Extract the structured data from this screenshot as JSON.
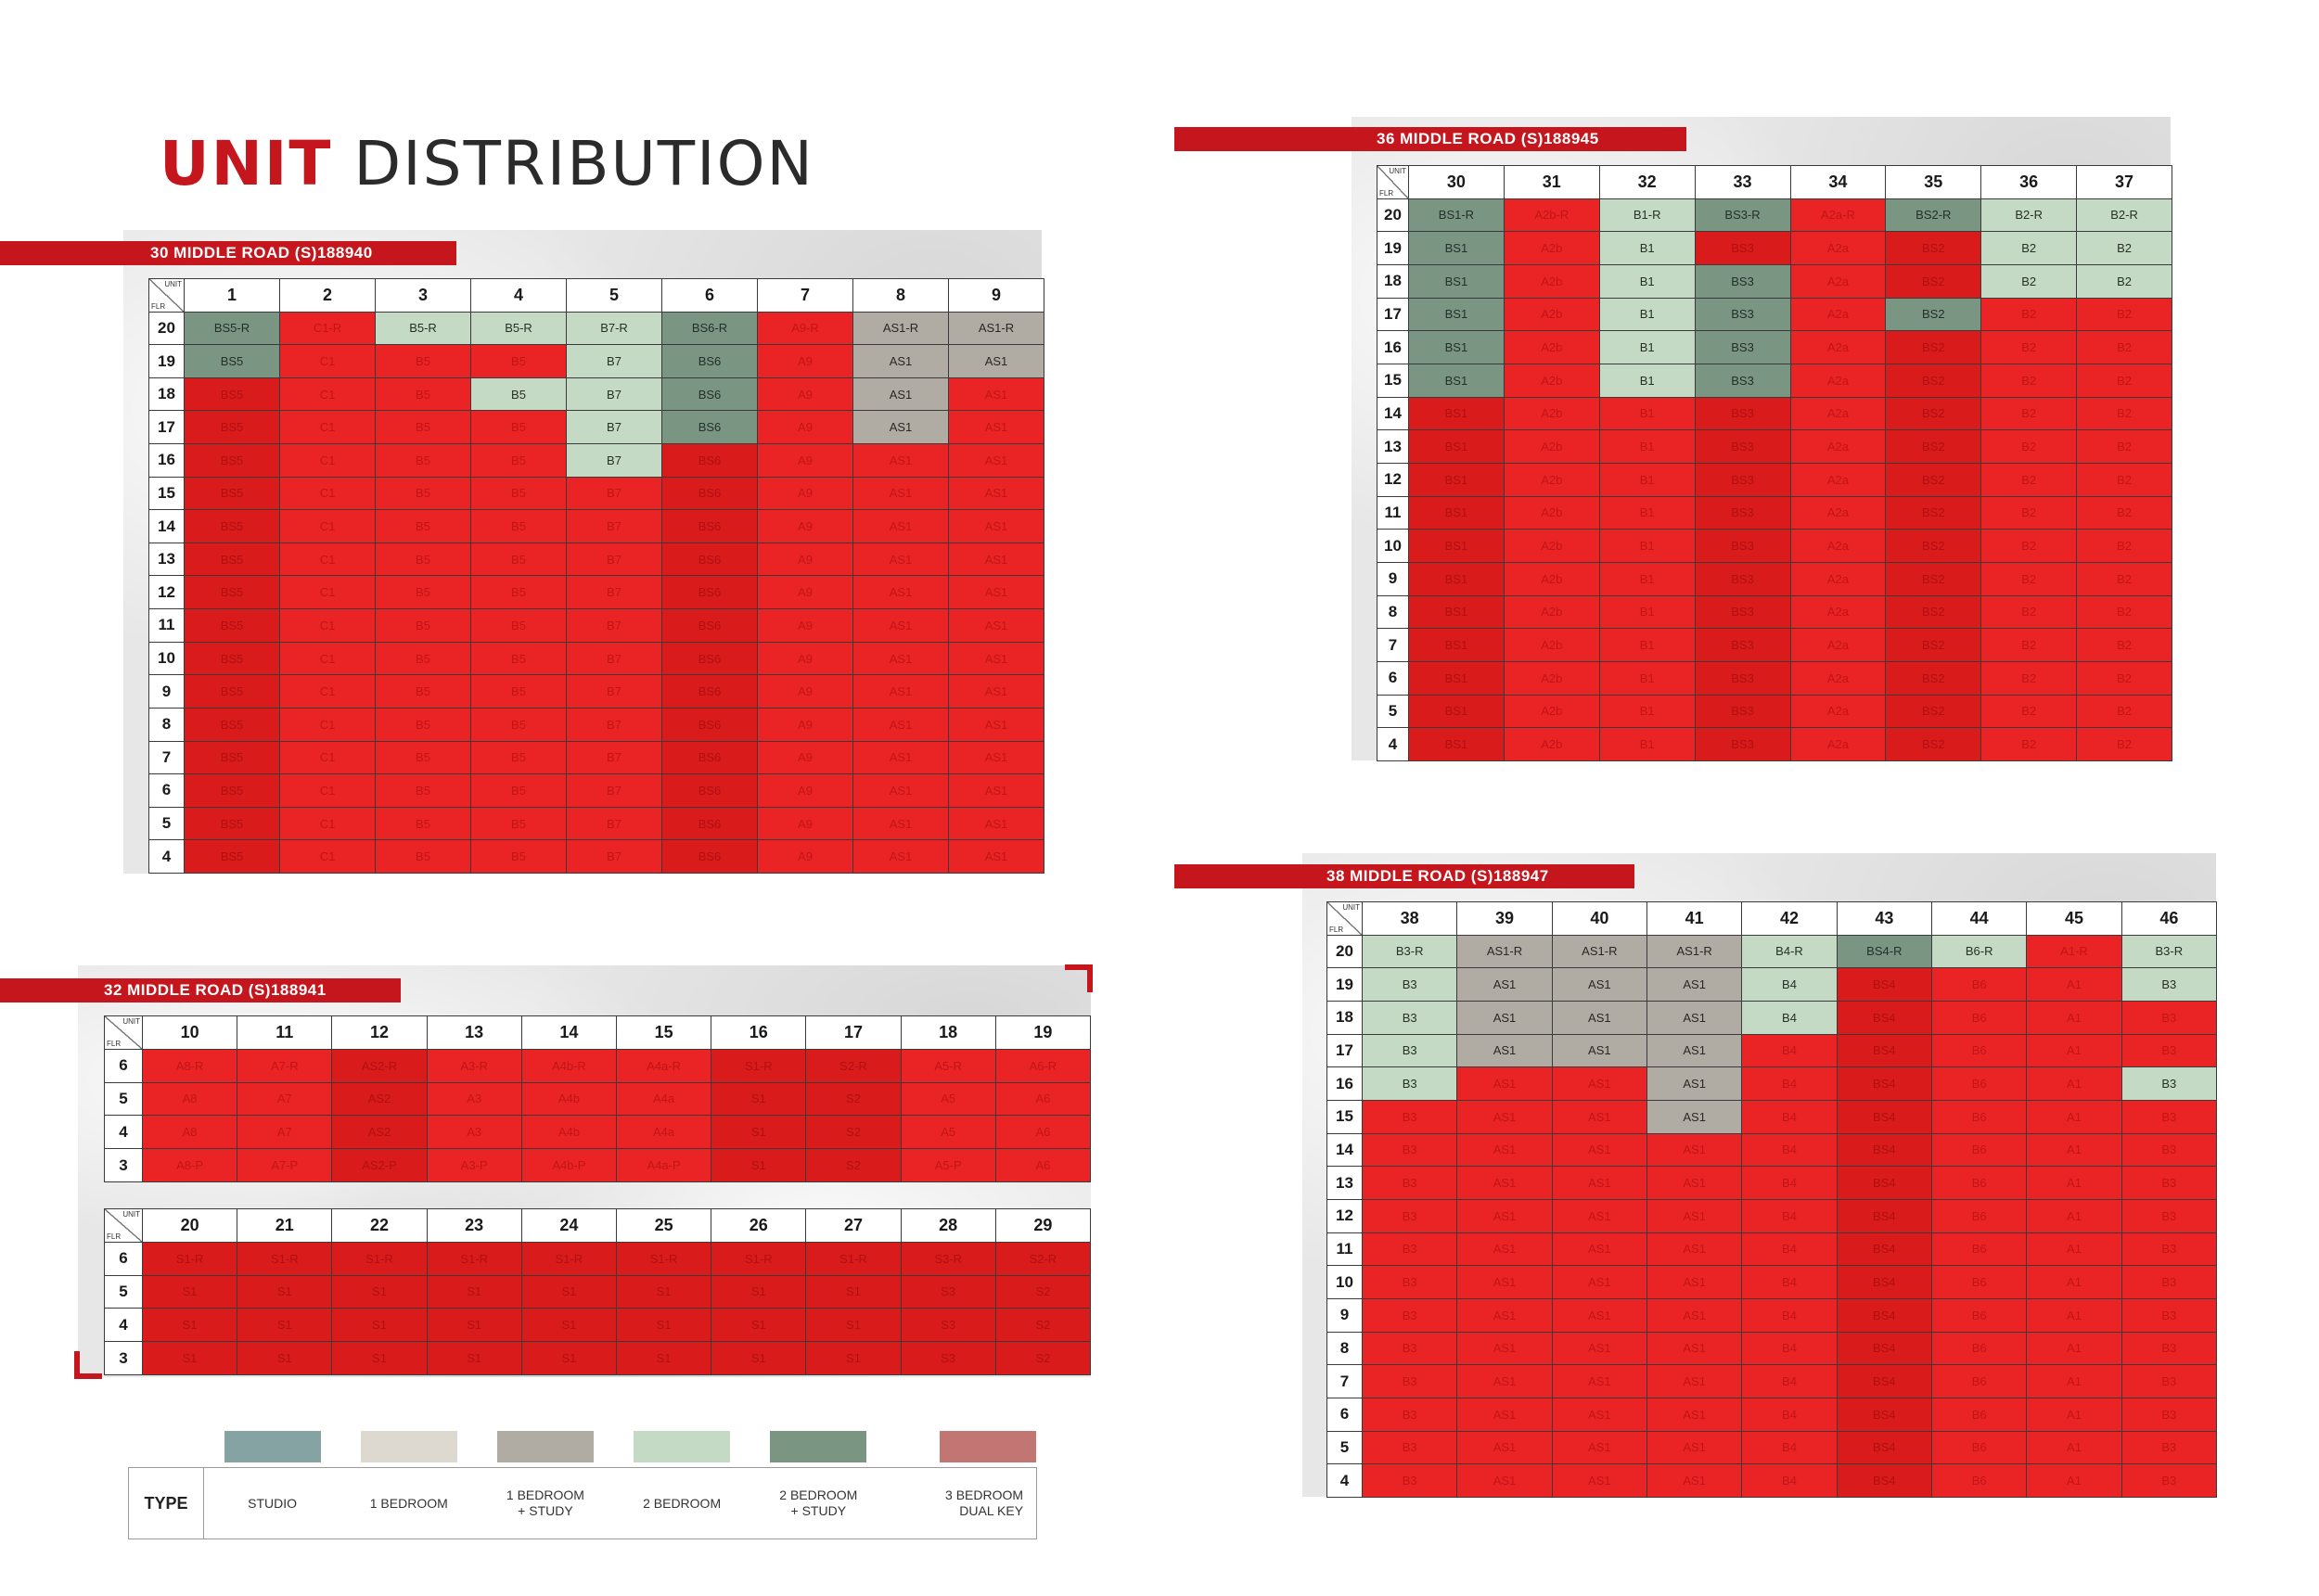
{
  "title": {
    "strong": "UNIT",
    "rest": " DISTRIBUTION"
  },
  "corner": {
    "unit": "UNIT",
    "floor": "FLR"
  },
  "colors": {
    "sold": "#ea2424",
    "studio": "#86a3a3",
    "one_bedroom": "#ddd8d0",
    "one_bedroom_study": "#b1aca3",
    "two_bedroom": "#c5dac5",
    "two_bedroom_study": "#7a9581",
    "three_bedroom_dual_key": "#c27674",
    "brand": "#c5161d"
  },
  "blocks": [
    {
      "id": "30",
      "name": "30 MIDDLE ROAD (S)188940",
      "units": [
        "1",
        "2",
        "3",
        "4",
        "5",
        "6",
        "7",
        "8",
        "9"
      ],
      "floors": [
        "20",
        "19",
        "18",
        "17",
        "16",
        "15",
        "14",
        "13",
        "12",
        "11",
        "10",
        "9",
        "8",
        "7",
        "6",
        "5",
        "4"
      ],
      "types": [
        "BS5",
        "C1",
        "B5",
        "B5",
        "B7",
        "BS6",
        "A9",
        "AS1",
        "AS1"
      ],
      "top_suffix": "-R",
      "available": {
        "1": [
          "20",
          "19"
        ],
        "3": [
          "20"
        ],
        "4": [
          "20",
          "18"
        ],
        "5": [
          "20",
          "19",
          "18",
          "17",
          "16"
        ],
        "6": [
          "20",
          "19",
          "18",
          "17"
        ],
        "8": [
          "20",
          "19",
          "18",
          "17"
        ],
        "9": [
          "20",
          "19"
        ]
      },
      "dark_cols": [
        "1",
        "6"
      ]
    },
    {
      "id": "36",
      "name": "36 MIDDLE ROAD (S)188945",
      "units": [
        "30",
        "31",
        "32",
        "33",
        "34",
        "35",
        "36",
        "37"
      ],
      "floors": [
        "20",
        "19",
        "18",
        "17",
        "16",
        "15",
        "14",
        "13",
        "12",
        "11",
        "10",
        "9",
        "8",
        "7",
        "6",
        "5",
        "4"
      ],
      "types": [
        "BS1",
        "A2b",
        "B1",
        "BS3",
        "A2a",
        "BS2",
        "B2",
        "B2"
      ],
      "top_suffix": "-R",
      "available": {
        "30": [
          "20",
          "19",
          "18",
          "17",
          "16",
          "15"
        ],
        "32": [
          "20",
          "19",
          "18",
          "17",
          "16",
          "15"
        ],
        "33": [
          "20",
          "18",
          "17",
          "16",
          "15"
        ],
        "35": [
          "20",
          "17"
        ],
        "36": [
          "20",
          "19",
          "18"
        ],
        "37": [
          "20",
          "19",
          "18"
        ]
      },
      "dark_cols": [
        "30",
        "33",
        "35"
      ]
    },
    {
      "id": "32a",
      "name": "32 MIDDLE ROAD (S)188941",
      "units": [
        "10",
        "11",
        "12",
        "13",
        "14",
        "15",
        "16",
        "17",
        "18",
        "19"
      ],
      "floors": [
        "6",
        "5",
        "4",
        "3"
      ],
      "labels": {
        "6": [
          "A8-R",
          "A7-R",
          "AS2-R",
          "A3-R",
          "A4b-R",
          "A4a-R",
          "S1-R",
          "S2-R",
          "A5-R",
          "A6-R"
        ],
        "5": [
          "A8",
          "A7",
          "AS2",
          "A3",
          "A4b",
          "A4a",
          "S1",
          "S2",
          "A5",
          "A6"
        ],
        "4": [
          "A8",
          "A7",
          "AS2",
          "A3",
          "A4b",
          "A4a",
          "S1",
          "S2",
          "A5",
          "A6"
        ],
        "3": [
          "A8-P",
          "A7-P",
          "AS2-P",
          "A3-P",
          "A4b-P",
          "A4a-P",
          "S1",
          "S2",
          "A5-P",
          "A6"
        ]
      },
      "available": {},
      "dark_cols": [
        "12",
        "16",
        "17"
      ]
    },
    {
      "id": "32b",
      "name": "",
      "units": [
        "20",
        "21",
        "22",
        "23",
        "24",
        "25",
        "26",
        "27",
        "28",
        "29"
      ],
      "floors": [
        "6",
        "5",
        "4",
        "3"
      ],
      "labels": {
        "6": [
          "S1-R",
          "S1-R",
          "S1-R",
          "S1-R",
          "S1-R",
          "S1-R",
          "S1-R",
          "S1-R",
          "S3-R",
          "S2-R"
        ],
        "5": [
          "S1",
          "S1",
          "S1",
          "S1",
          "S1",
          "S1",
          "S1",
          "S1",
          "S3",
          "S2"
        ],
        "4": [
          "S1",
          "S1",
          "S1",
          "S1",
          "S1",
          "S1",
          "S1",
          "S1",
          "S3",
          "S2"
        ],
        "3": [
          "S1",
          "S1",
          "S1",
          "S1",
          "S1",
          "S1",
          "S1",
          "S1",
          "S3",
          "S2"
        ]
      },
      "available": {},
      "dark_cols": [
        "20",
        "21",
        "22",
        "23",
        "24",
        "25",
        "26",
        "27",
        "28",
        "29"
      ]
    },
    {
      "id": "38",
      "name": "38 MIDDLE ROAD (S)188947",
      "units": [
        "38",
        "39",
        "40",
        "41",
        "42",
        "43",
        "44",
        "45",
        "46"
      ],
      "floors": [
        "20",
        "19",
        "18",
        "17",
        "16",
        "15",
        "14",
        "13",
        "12",
        "11",
        "10",
        "9",
        "8",
        "7",
        "6",
        "5",
        "4"
      ],
      "types": [
        "B3",
        "AS1",
        "AS1",
        "AS1",
        "B4",
        "BS4",
        "B6",
        "A1",
        "B3"
      ],
      "top_suffix": "-R",
      "available": {
        "38": [
          "20",
          "19",
          "18",
          "17",
          "16"
        ],
        "39": [
          "20",
          "19",
          "18",
          "17"
        ],
        "40": [
          "20",
          "19",
          "18",
          "17"
        ],
        "41": [
          "20",
          "19",
          "18",
          "17",
          "16",
          "15"
        ],
        "42": [
          "20",
          "19",
          "18"
        ],
        "43": [
          "20"
        ],
        "44": [
          "20"
        ],
        "46": [
          "20",
          "19",
          "16"
        ]
      },
      "dark_cols": [
        "43"
      ]
    }
  ],
  "legend": {
    "type_label": "TYPE",
    "items": [
      {
        "label1": "STUDIO",
        "label2": "",
        "color": "#86a3a3"
      },
      {
        "label1": "1 BEDROOM",
        "label2": "",
        "color": "#ddd8d0"
      },
      {
        "label1": "1 BEDROOM",
        "label2": "+ STUDY",
        "color": "#b1aca3"
      },
      {
        "label1": "2 BEDROOM",
        "label2": "",
        "color": "#c5dac5"
      },
      {
        "label1": "2 BEDROOM",
        "label2": "+ STUDY",
        "color": "#7a9581"
      },
      {
        "label1": "3 BEDROOM",
        "label2": "DUAL KEY",
        "color": "#c27674"
      }
    ]
  }
}
